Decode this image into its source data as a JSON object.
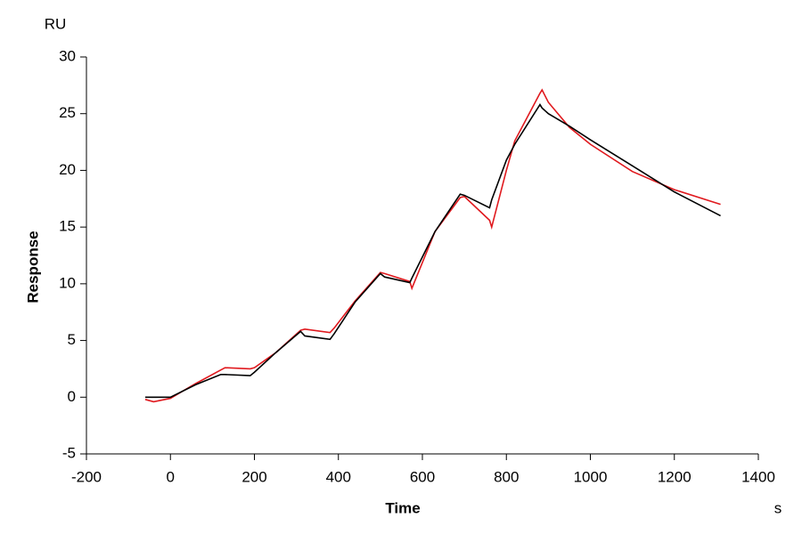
{
  "chart_data": {
    "type": "line",
    "x_label": "Time",
    "y_label": "Response",
    "x_unit": "s",
    "y_unit": "RU",
    "x": [
      -60,
      -40,
      0,
      60,
      120,
      130,
      190,
      200,
      250,
      310,
      320,
      380,
      390,
      440,
      500,
      510,
      570,
      575,
      630,
      690,
      700,
      760,
      765,
      800,
      820,
      880,
      885,
      900,
      950,
      1000,
      1100,
      1200,
      1310
    ],
    "series": [
      {
        "color": "#e0191e",
        "values": [
          -0.2,
          -0.4,
          -0.1,
          1.2,
          2.4,
          2.6,
          2.5,
          2.6,
          3.9,
          5.9,
          6.0,
          5.7,
          6.1,
          8.5,
          11.0,
          10.9,
          10.2,
          9.6,
          14.6,
          17.6,
          17.7,
          15.6,
          15.0,
          20.0,
          22.6,
          26.8,
          27.1,
          26.0,
          23.8,
          22.3,
          19.9,
          18.3,
          17.0
        ]
      },
      {
        "color": "#000000",
        "values": [
          0,
          0,
          0,
          1.1,
          2.0,
          2.0,
          1.9,
          2.2,
          3.9,
          5.8,
          5.4,
          5.1,
          5.6,
          8.4,
          10.9,
          10.6,
          10.1,
          10.5,
          14.6,
          17.9,
          17.8,
          16.7,
          17.4,
          20.9,
          22.3,
          25.8,
          25.5,
          25.0,
          23.9,
          22.7,
          20.4,
          18.1,
          16.0
        ]
      }
    ],
    "xlim": [
      -200,
      1400
    ],
    "xticks": [
      -200,
      0,
      200,
      400,
      600,
      800,
      1000,
      1200,
      1400
    ],
    "ylim": [
      -5,
      30
    ],
    "yticks": [
      -5,
      0,
      5,
      10,
      15,
      20,
      25,
      30
    ]
  }
}
